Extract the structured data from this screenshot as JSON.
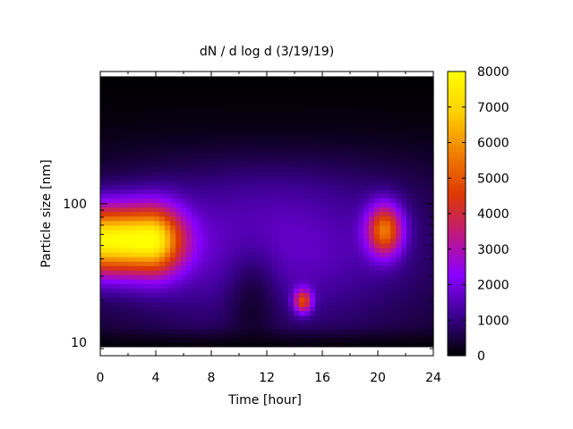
{
  "chart_data": {
    "type": "heatmap",
    "title": "dN / d log d (3/19/19)",
    "xlabel": "Time [hour]",
    "ylabel": "Particle size [nm]",
    "xlim": [
      0,
      24
    ],
    "ylim": [
      8,
      900
    ],
    "yscale": "log",
    "x_ticks": [
      0,
      4,
      8,
      12,
      16,
      20,
      24
    ],
    "x_tick_labels": [
      "0",
      "4",
      "8",
      "12",
      "16",
      "20",
      "24"
    ],
    "y_ticks": [
      10,
      100
    ],
    "y_tick_labels": [
      "10",
      "100"
    ],
    "colorbar": {
      "range": [
        0,
        8000
      ],
      "ticks": [
        0,
        1000,
        2000,
        3000,
        4000,
        5000,
        6000,
        7000,
        8000
      ],
      "tick_labels": [
        "0",
        "1000",
        "2000",
        "3000",
        "4000",
        "5000",
        "6000",
        "7000",
        "8000"
      ],
      "colormap": [
        "#000000",
        "#3b0090",
        "#8a00ff",
        "#c01880",
        "#dc3a00",
        "#f08000",
        "#ffd000",
        "#ffff00"
      ]
    },
    "grid": false,
    "legend": "colorbar-right",
    "data_range": {
      "time": [
        0,
        24
      ],
      "size": [
        9.3,
        830
      ]
    },
    "features": [
      {
        "time": 3.5,
        "size": 55,
        "peak": 7400,
        "note": ""
      },
      {
        "time": 20.5,
        "size": 65,
        "peak": 4800,
        "note": ""
      },
      {
        "time": 14.6,
        "size": 20,
        "peak": 4300,
        "note": ""
      }
    ]
  }
}
